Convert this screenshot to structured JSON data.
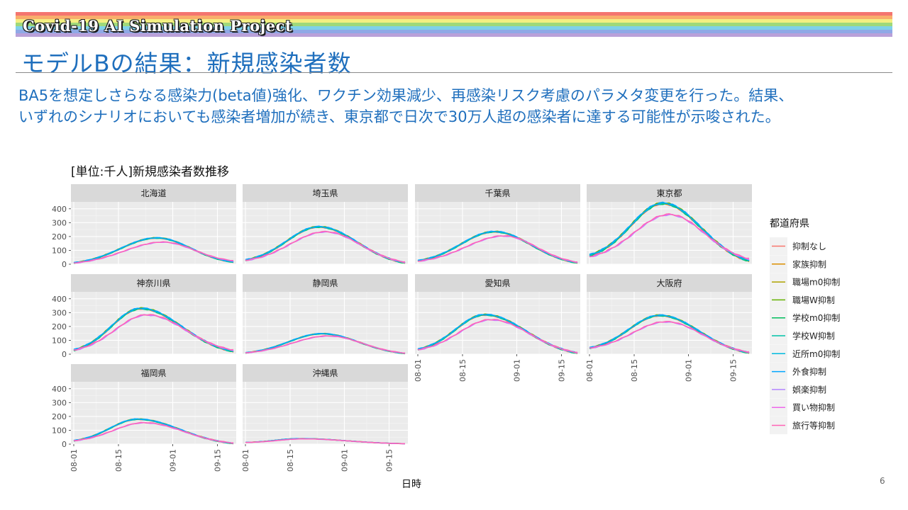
{
  "header": {
    "brand": "Covid-19 AI Simulation Project",
    "title": "モデルBの結果：新規感染者数",
    "rainbow_colors": [
      "#f4756f",
      "#f9ad6c",
      "#f3ef82",
      "#9fd97a",
      "#7fd1ea",
      "#8fa9e6",
      "#b9a0d9"
    ]
  },
  "summary": {
    "line1": "BA5を想定しさらなる感染力(beta値)強化、ワクチン効果減少、再感染リスク考慮のパラメタ変更を行った。結果、",
    "line2": "いずれのシナリオにおいても感染者増加が続き、東京都で日次で30万人超の感染者に達する可能性が示唆された。"
  },
  "page_number": "6",
  "chart_data": {
    "type": "line",
    "title": "[単位:千人]新規感染者数推移",
    "xlabel": "日時",
    "ylabel": "",
    "x_range": [
      "2022-08-01",
      "2022-09-20"
    ],
    "x_ticks": [
      "08-01",
      "08-15",
      "09-01",
      "09-15"
    ],
    "y_ticks": [
      0,
      100,
      200,
      300,
      400
    ],
    "ylim": [
      0,
      450
    ],
    "grid": true,
    "legend": {
      "title": "都道府県",
      "position": "right",
      "entries": [
        {
          "name": "抑制なし",
          "color": "#F8766D"
        },
        {
          "name": "家族抑制",
          "color": "#DB8E00"
        },
        {
          "name": "職場m0抑制",
          "color": "#AEA200"
        },
        {
          "name": "職場W抑制",
          "color": "#64B200"
        },
        {
          "name": "学校m0抑制",
          "color": "#00BD5C"
        },
        {
          "name": "学校W抑制",
          "color": "#00C1A7"
        },
        {
          "name": "近所m0抑制",
          "color": "#00BADE"
        },
        {
          "name": "外食抑制",
          "color": "#00A6FF"
        },
        {
          "name": "娯楽抑制",
          "color": "#B385FF"
        },
        {
          "name": "買い物抑制",
          "color": "#EF67EB"
        },
        {
          "name": "旅行等抑制",
          "color": "#FF63B6"
        }
      ]
    },
    "panels": [
      {
        "name": "北海道",
        "high": {
          "start": 10,
          "peak": 190,
          "peak_day": 26,
          "end": 15
        },
        "low": {
          "start": 9,
          "peak": 160,
          "peak_day": 28,
          "end": 25
        }
      },
      {
        "name": "埼玉県",
        "high": {
          "start": 30,
          "peak": 270,
          "peak_day": 23,
          "end": 10
        },
        "low": {
          "start": 28,
          "peak": 235,
          "peak_day": 25,
          "end": 15
        }
      },
      {
        "name": "千葉県",
        "high": {
          "start": 25,
          "peak": 235,
          "peak_day": 24,
          "end": 10
        },
        "low": {
          "start": 22,
          "peak": 205,
          "peak_day": 27,
          "end": 15
        }
      },
      {
        "name": "東京都",
        "high": {
          "start": 65,
          "peak": 440,
          "peak_day": 23,
          "end": 25
        },
        "low": {
          "start": 55,
          "peak": 360,
          "peak_day": 25,
          "end": 40
        }
      },
      {
        "name": "神奈川県",
        "high": {
          "start": 30,
          "peak": 330,
          "peak_day": 21,
          "end": 20
        },
        "low": {
          "start": 30,
          "peak": 285,
          "peak_day": 23,
          "end": 30
        }
      },
      {
        "name": "静岡県",
        "high": {
          "start": 10,
          "peak": 148,
          "peak_day": 24,
          "end": 5
        },
        "low": {
          "start": 10,
          "peak": 132,
          "peak_day": 26,
          "end": 8
        }
      },
      {
        "name": "愛知県",
        "high": {
          "start": 35,
          "peak": 285,
          "peak_day": 21,
          "end": 8
        },
        "low": {
          "start": 33,
          "peak": 250,
          "peak_day": 23,
          "end": 12
        }
      },
      {
        "name": "大阪府",
        "high": {
          "start": 45,
          "peak": 280,
          "peak_day": 22,
          "end": 10
        },
        "low": {
          "start": 45,
          "peak": 235,
          "peak_day": 24,
          "end": 15
        }
      },
      {
        "name": "福岡県",
        "high": {
          "start": 25,
          "peak": 180,
          "peak_day": 20,
          "end": 5
        },
        "low": {
          "start": 25,
          "peak": 155,
          "peak_day": 22,
          "end": 8
        }
      },
      {
        "name": "沖縄県",
        "high": {
          "start": 12,
          "peak": 40,
          "peak_day": 17,
          "end": 3
        },
        "low": {
          "start": 12,
          "peak": 38,
          "peak_day": 18,
          "end": 3
        }
      }
    ]
  }
}
